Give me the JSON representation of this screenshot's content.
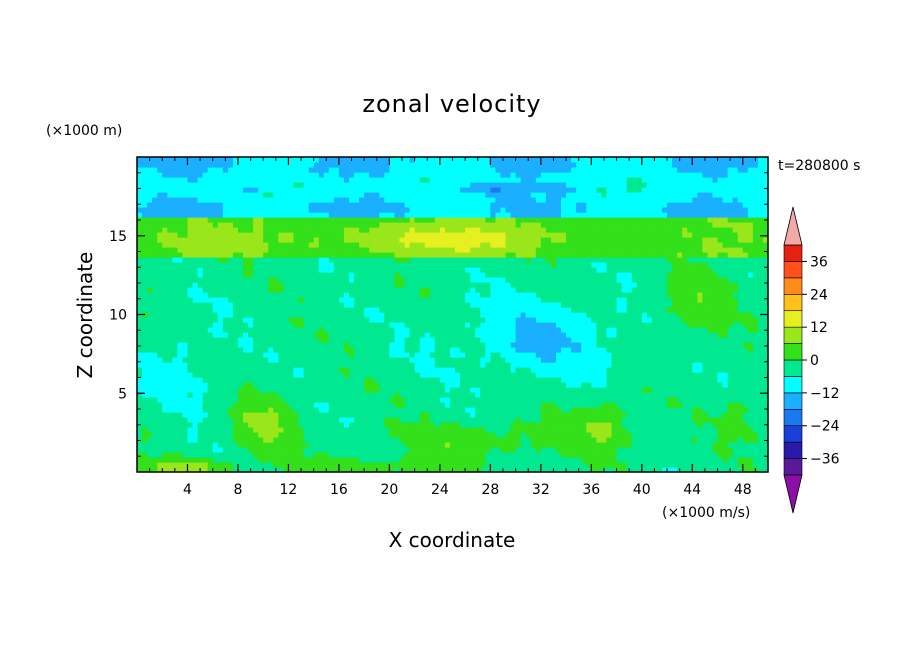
{
  "chart_data": {
    "type": "heatmap",
    "title": "zonal velocity",
    "xlabel": "X coordinate",
    "ylabel": "Z coordinate",
    "x_unit": "(×1000 m/s)",
    "y_unit": "(×1000 m)",
    "time_label": "t=280800 s",
    "xlim": [
      0,
      50
    ],
    "ylim": [
      0,
      20
    ],
    "x_ticks": [
      4,
      8,
      12,
      16,
      20,
      24,
      28,
      32,
      36,
      40,
      44,
      48
    ],
    "y_ticks": [
      5,
      10,
      15
    ],
    "x_tick_labels": [
      "4",
      "8",
      "12",
      "16",
      "20",
      "24",
      "28",
      "32",
      "36",
      "40",
      "44",
      "48"
    ],
    "y_tick_labels": [
      "5",
      "10",
      "15"
    ],
    "colorbar": {
      "levels": [
        -42,
        -36,
        -30,
        -24,
        -18,
        -12,
        -6,
        0,
        6,
        12,
        18,
        24,
        30,
        36,
        42
      ],
      "tick_values": [
        -36,
        -24,
        -12,
        0,
        12,
        24,
        36
      ],
      "tick_labels": [
        "−36",
        "−24",
        "−12",
        "0",
        "12",
        "24",
        "36"
      ],
      "colors": [
        "#5a189a",
        "#2a1aa8",
        "#1a3fd8",
        "#1a78f0",
        "#1ab0ff",
        "#00ffff",
        "#00e890",
        "#33e01a",
        "#99e61a",
        "#e6f020",
        "#ffc01a",
        "#ff8c1a",
        "#ff501a",
        "#e82010"
      ],
      "under_color": "#8c10a8",
      "over_color": "#f5a8a8"
    },
    "x_axis_range_cells": [
      0,
      50
    ],
    "grid": false
  }
}
